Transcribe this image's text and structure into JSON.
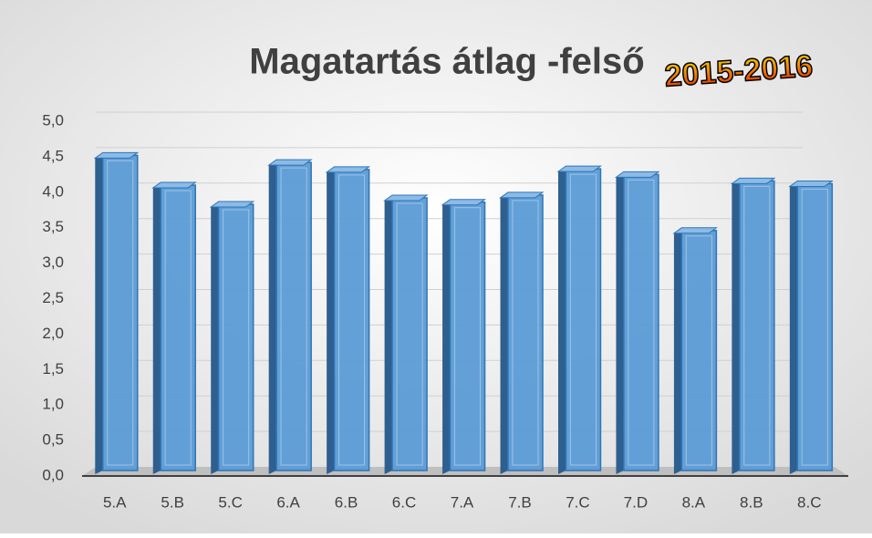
{
  "chart_data": {
    "type": "bar3d",
    "title": "Magatartás átlag -felső",
    "subtitle": "2015-2016",
    "categories": [
      "5.A",
      "5.B",
      "5.C",
      "6.A",
      "6.B",
      "6.C",
      "7.A",
      "7.B",
      "7.C",
      "7.D",
      "8.A",
      "8.B",
      "8.C"
    ],
    "values": [
      4.52,
      4.1,
      3.83,
      4.42,
      4.32,
      3.92,
      3.86,
      3.96,
      4.33,
      4.25,
      3.46,
      4.16,
      4.12
    ],
    "color": "#5b9bd5",
    "ylim": [
      0,
      5
    ],
    "yticks": [
      {
        "value": 0,
        "label": "0,0"
      },
      {
        "value": 0.5,
        "label": "0,5"
      },
      {
        "value": 1,
        "label": "1,0"
      },
      {
        "value": 1.5,
        "label": "1,5"
      },
      {
        "value": 2,
        "label": "2,0"
      },
      {
        "value": 2.5,
        "label": "2,5"
      },
      {
        "value": 3,
        "label": "3,0"
      },
      {
        "value": 3.5,
        "label": "3,5"
      },
      {
        "value": 4,
        "label": "4,0"
      },
      {
        "value": 4.5,
        "label": "4,5"
      },
      {
        "value": 5,
        "label": "5,0"
      }
    ],
    "grid": true
  }
}
